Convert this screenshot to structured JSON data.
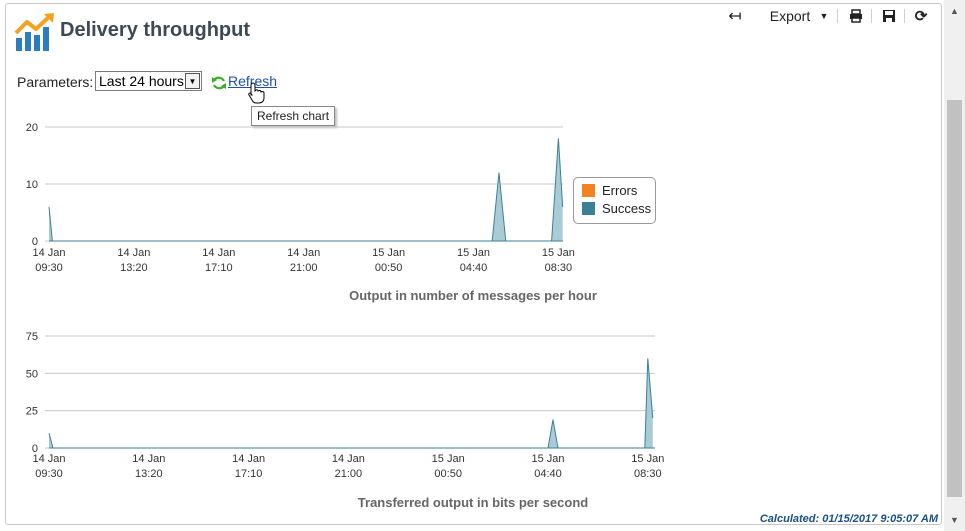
{
  "page": {
    "title": "Delivery throughput",
    "parameters_label": "Parameters:",
    "period_value": "Last 24 hours",
    "refresh_label": "Refresh",
    "tooltip": "Refresh chart",
    "status": "Calculated: 01/15/2017 9:05:07 AM"
  },
  "toolbar": {
    "export_label": "Export"
  },
  "icons": {
    "back": "back-arrow-icon",
    "dropdown": "caret-down-icon",
    "print": "print-icon",
    "save": "save-icon",
    "reload": "reload-icon",
    "title": "chart-trend-icon",
    "refresh": "refresh-icon",
    "cursor": "hand-pointer-icon"
  },
  "colors": {
    "errors": "#f5821f",
    "success": "#3a8196",
    "success_fill": "#a9cbd6",
    "link": "#1f4fae",
    "status": "#1a4f8a"
  },
  "chart_data": [
    {
      "type": "area",
      "title": "Output in number of messages per hour",
      "xlabel": "",
      "ylabel": "",
      "ylim": [
        0,
        20
      ],
      "yticks": [
        0,
        10,
        20
      ],
      "grid": true,
      "legend": "right",
      "categories": [
        [
          "14 Jan",
          "09:30"
        ],
        [
          "14 Jan",
          "13:20"
        ],
        [
          "14 Jan",
          "17:10"
        ],
        [
          "14 Jan",
          "21:00"
        ],
        [
          "15 Jan",
          "00:50"
        ],
        [
          "15 Jan",
          "04:40"
        ],
        [
          "15 Jan",
          "08:30"
        ]
      ],
      "series": [
        {
          "name": "Errors",
          "color": "#f5821f",
          "points": [
            [
              0,
              0
            ],
            [
              6.05,
              0
            ]
          ]
        },
        {
          "name": "Success",
          "color": "#3a8196",
          "points": [
            [
              0,
              6
            ],
            [
              0.04,
              0
            ],
            [
              5.22,
              0
            ],
            [
              5.3,
              12
            ],
            [
              5.38,
              0
            ],
            [
              5.92,
              0
            ],
            [
              6.0,
              18
            ],
            [
              6.05,
              6
            ]
          ]
        }
      ]
    },
    {
      "type": "area",
      "title": "Transferred output in bits per second",
      "xlabel": "",
      "ylabel": "",
      "ylim": [
        0,
        75
      ],
      "yticks": [
        0,
        25,
        50,
        75
      ],
      "grid": true,
      "categories": [
        [
          "14 Jan",
          "09:30"
        ],
        [
          "14 Jan",
          "13:20"
        ],
        [
          "14 Jan",
          "17:10"
        ],
        [
          "14 Jan",
          "21:00"
        ],
        [
          "15 Jan",
          "00:50"
        ],
        [
          "15 Jan",
          "04:40"
        ],
        [
          "15 Jan",
          "08:30"
        ]
      ],
      "series": [
        {
          "name": "Success",
          "color": "#3a8196",
          "points": [
            [
              0,
              10
            ],
            [
              0.04,
              0
            ],
            [
              5.0,
              0
            ],
            [
              5.05,
              19
            ],
            [
              5.1,
              0
            ],
            [
              5.97,
              0
            ],
            [
              6.0,
              60
            ],
            [
              6.05,
              20
            ]
          ]
        }
      ]
    }
  ]
}
